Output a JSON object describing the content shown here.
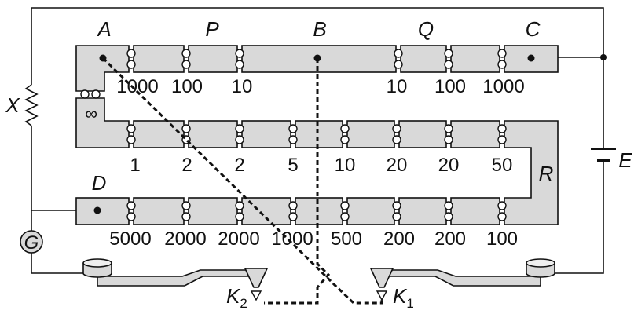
{
  "points": {
    "A": "A",
    "P": "P",
    "B": "B",
    "Q": "Q",
    "C": "C",
    "D": "D",
    "R": "R"
  },
  "components": {
    "X": "X",
    "E": "E",
    "G": "G",
    "infinity": "∞"
  },
  "keys": {
    "K2": {
      "main": "K",
      "sub": "2"
    },
    "K1": {
      "main": "K",
      "sub": "1"
    }
  },
  "row1_values": [
    "1000",
    "100",
    "10",
    "10",
    "100",
    "1000"
  ],
  "row2_values": [
    "1",
    "2",
    "2",
    "5",
    "10",
    "20",
    "20",
    "50"
  ],
  "row3_values": [
    "5000",
    "2000",
    "2000",
    "1000",
    "500",
    "200",
    "200",
    "100"
  ]
}
